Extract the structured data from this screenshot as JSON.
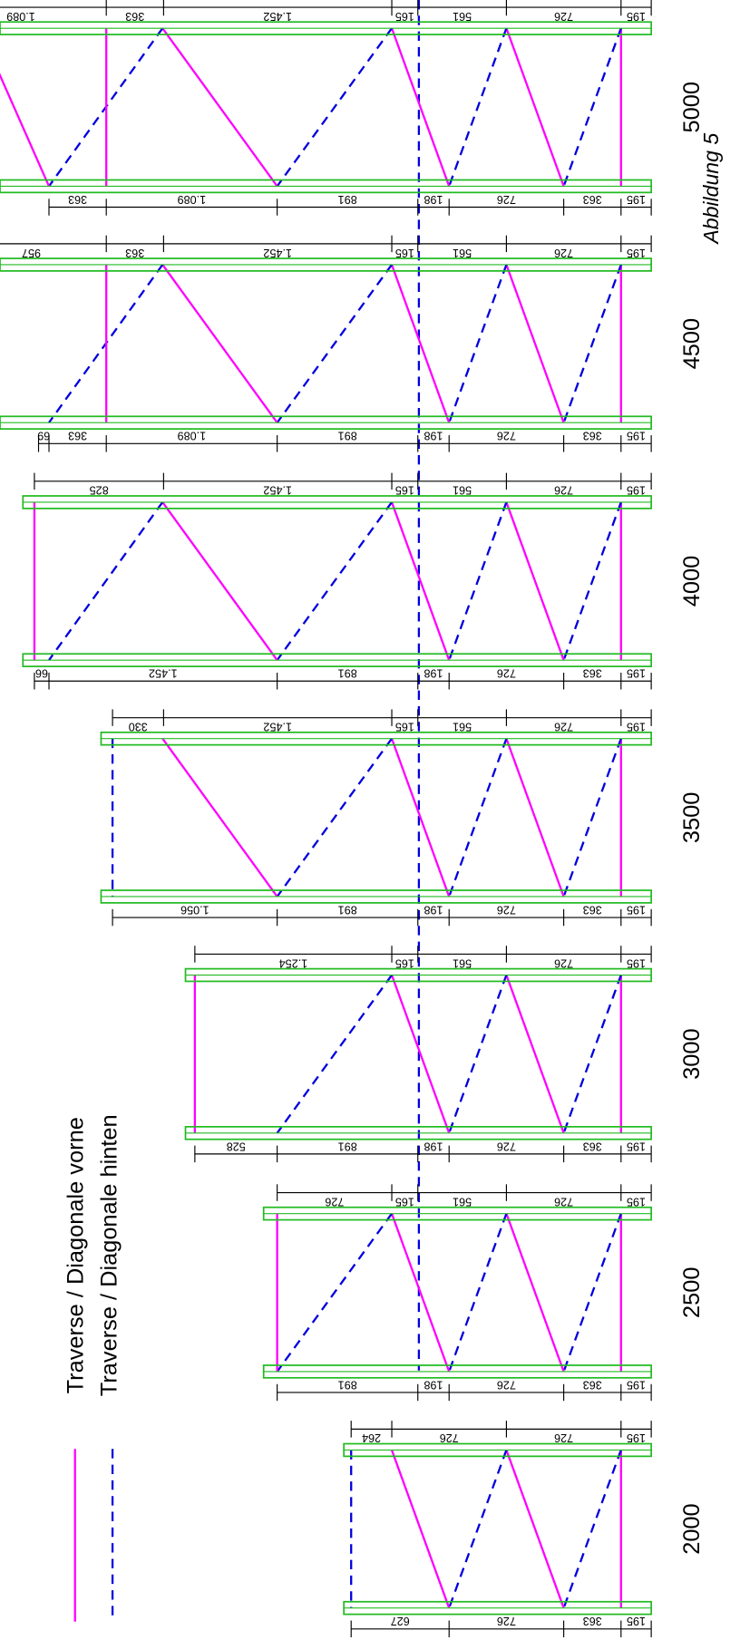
{
  "legend": [
    "Traverse / Diagonale vorne",
    "Traverse / Diagonale hinten"
  ],
  "caption": "Abbildung 5",
  "panels": [
    {
      "height": 2000,
      "top": [
        "195",
        "726",
        "726",
        "264"
      ],
      "bottom": [
        "195",
        "363",
        "726",
        "627"
      ]
    },
    {
      "height": 2500,
      "top": [
        "195",
        "726",
        "561",
        "165",
        "726"
      ],
      "bottom": [
        "195",
        "363",
        "726",
        "198",
        "891"
      ]
    },
    {
      "height": 3000,
      "top": [
        "195",
        "726",
        "561",
        "165",
        "1.254"
      ],
      "bottom": [
        "195",
        "363",
        "726",
        "198",
        "891",
        "528"
      ]
    },
    {
      "height": 3500,
      "top": [
        "195",
        "726",
        "561",
        "165",
        "1.452",
        "330"
      ],
      "bottom": [
        "195",
        "363",
        "726",
        "198",
        "891",
        "1.056"
      ]
    },
    {
      "height": 4000,
      "top": [
        "195",
        "726",
        "561",
        "165",
        "1.452",
        "825"
      ],
      "bottom": [
        "195",
        "363",
        "726",
        "198",
        "891",
        "1.452",
        "66"
      ]
    },
    {
      "height": 4500,
      "top": [
        "195",
        "726",
        "561",
        "165",
        "1.452",
        "363",
        "957"
      ],
      "bottom": [
        "195",
        "363",
        "726",
        "198",
        "891",
        "1.089",
        "363",
        "69"
      ]
    },
    {
      "height": 5000,
      "top": [
        "195",
        "726",
        "561",
        "165",
        "1.452",
        "363",
        "1.089"
      ],
      "bottom": [
        "195",
        "363",
        "726",
        "198",
        "891",
        "1.089",
        "363"
      ]
    }
  ]
}
